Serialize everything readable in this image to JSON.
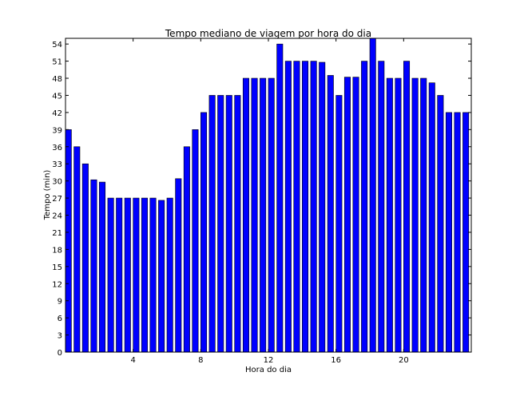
{
  "chart_data": {
    "type": "bar",
    "title": "Tempo mediano de viagem por hora do dia",
    "xlabel": "Hora do dia",
    "ylabel": "Tempo (min)",
    "xlim": [
      0,
      24
    ],
    "ylim": [
      0,
      55
    ],
    "bar_width_hours": 0.35,
    "bar_color": "#0000ff",
    "xticks": [
      "4",
      "8",
      "12",
      "16",
      "20"
    ],
    "xtick_values": [
      4,
      8,
      12,
      16,
      20
    ],
    "yticks": [
      "0",
      "3",
      "6",
      "9",
      "12",
      "15",
      "18",
      "21",
      "24",
      "27",
      "30",
      "33",
      "36",
      "39",
      "42",
      "45",
      "48",
      "51",
      "54"
    ],
    "ytick_values": [
      0,
      3,
      6,
      9,
      12,
      15,
      18,
      21,
      24,
      27,
      30,
      33,
      36,
      39,
      42,
      45,
      48,
      51,
      54
    ],
    "x": [
      0,
      0.5,
      1,
      1.5,
      2,
      2.5,
      3,
      3.5,
      4,
      4.5,
      5,
      5.5,
      6,
      6.5,
      7,
      7.5,
      8,
      8.5,
      9,
      9.5,
      10,
      10.5,
      11,
      11.5,
      12,
      12.5,
      13,
      13.5,
      14,
      14.5,
      15,
      15.5,
      16,
      16.5,
      17,
      17.5,
      18,
      18.5,
      19,
      19.5,
      20,
      20.5,
      21,
      21.5,
      22,
      22.5,
      23,
      23.5
    ],
    "values": [
      39,
      36,
      33,
      30.2,
      29.8,
      27,
      27,
      27,
      27,
      27,
      27,
      26.6,
      27,
      30.4,
      36,
      39,
      42,
      45,
      45,
      45,
      45,
      48,
      48,
      48,
      48,
      54,
      51,
      51,
      51,
      51,
      50.8,
      48.5,
      45,
      48.2,
      48.2,
      51,
      55,
      51,
      48,
      48,
      51,
      48,
      48,
      47.2,
      45,
      42,
      42,
      42
    ]
  }
}
